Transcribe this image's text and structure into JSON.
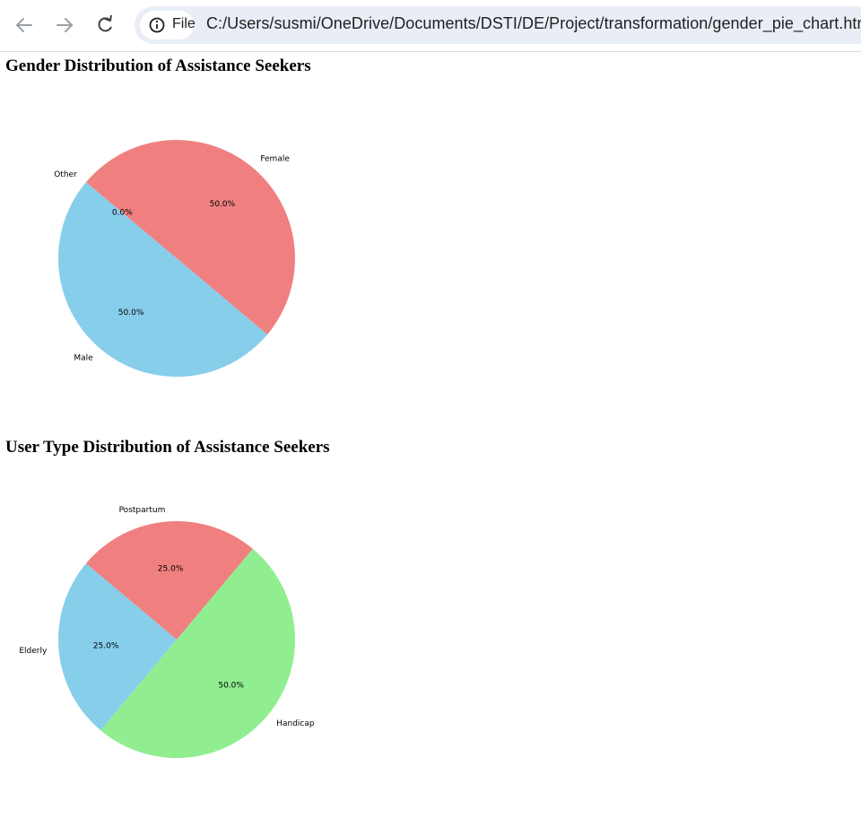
{
  "browser": {
    "file_label": "File",
    "url": "C:/Users/susmi/OneDrive/Documents/DSTI/DE/Project/transformation/gender_pie_chart.html"
  },
  "chart_data": [
    {
      "type": "pie",
      "title": "Gender Distribution of Assistance Seekers",
      "categories": [
        "Female",
        "Male",
        "Other"
      ],
      "values": [
        50,
        50,
        0
      ],
      "value_labels": [
        "50.0%",
        "50.0%",
        "0.0%"
      ],
      "colors": [
        "#f08080",
        "#87ceeb",
        "#90ee90"
      ],
      "start_angle": 140,
      "counterclock": false
    },
    {
      "type": "pie",
      "title": "User Type Distribution of Assistance Seekers",
      "categories": [
        "Postpartum",
        "Handicap",
        "Elderly"
      ],
      "values": [
        25,
        50,
        25
      ],
      "value_labels": [
        "25.0%",
        "50.0%",
        "25.0%"
      ],
      "colors": [
        "#f08080",
        "#90ee90",
        "#87ceeb"
      ],
      "start_angle": 140,
      "counterclock": false
    }
  ]
}
